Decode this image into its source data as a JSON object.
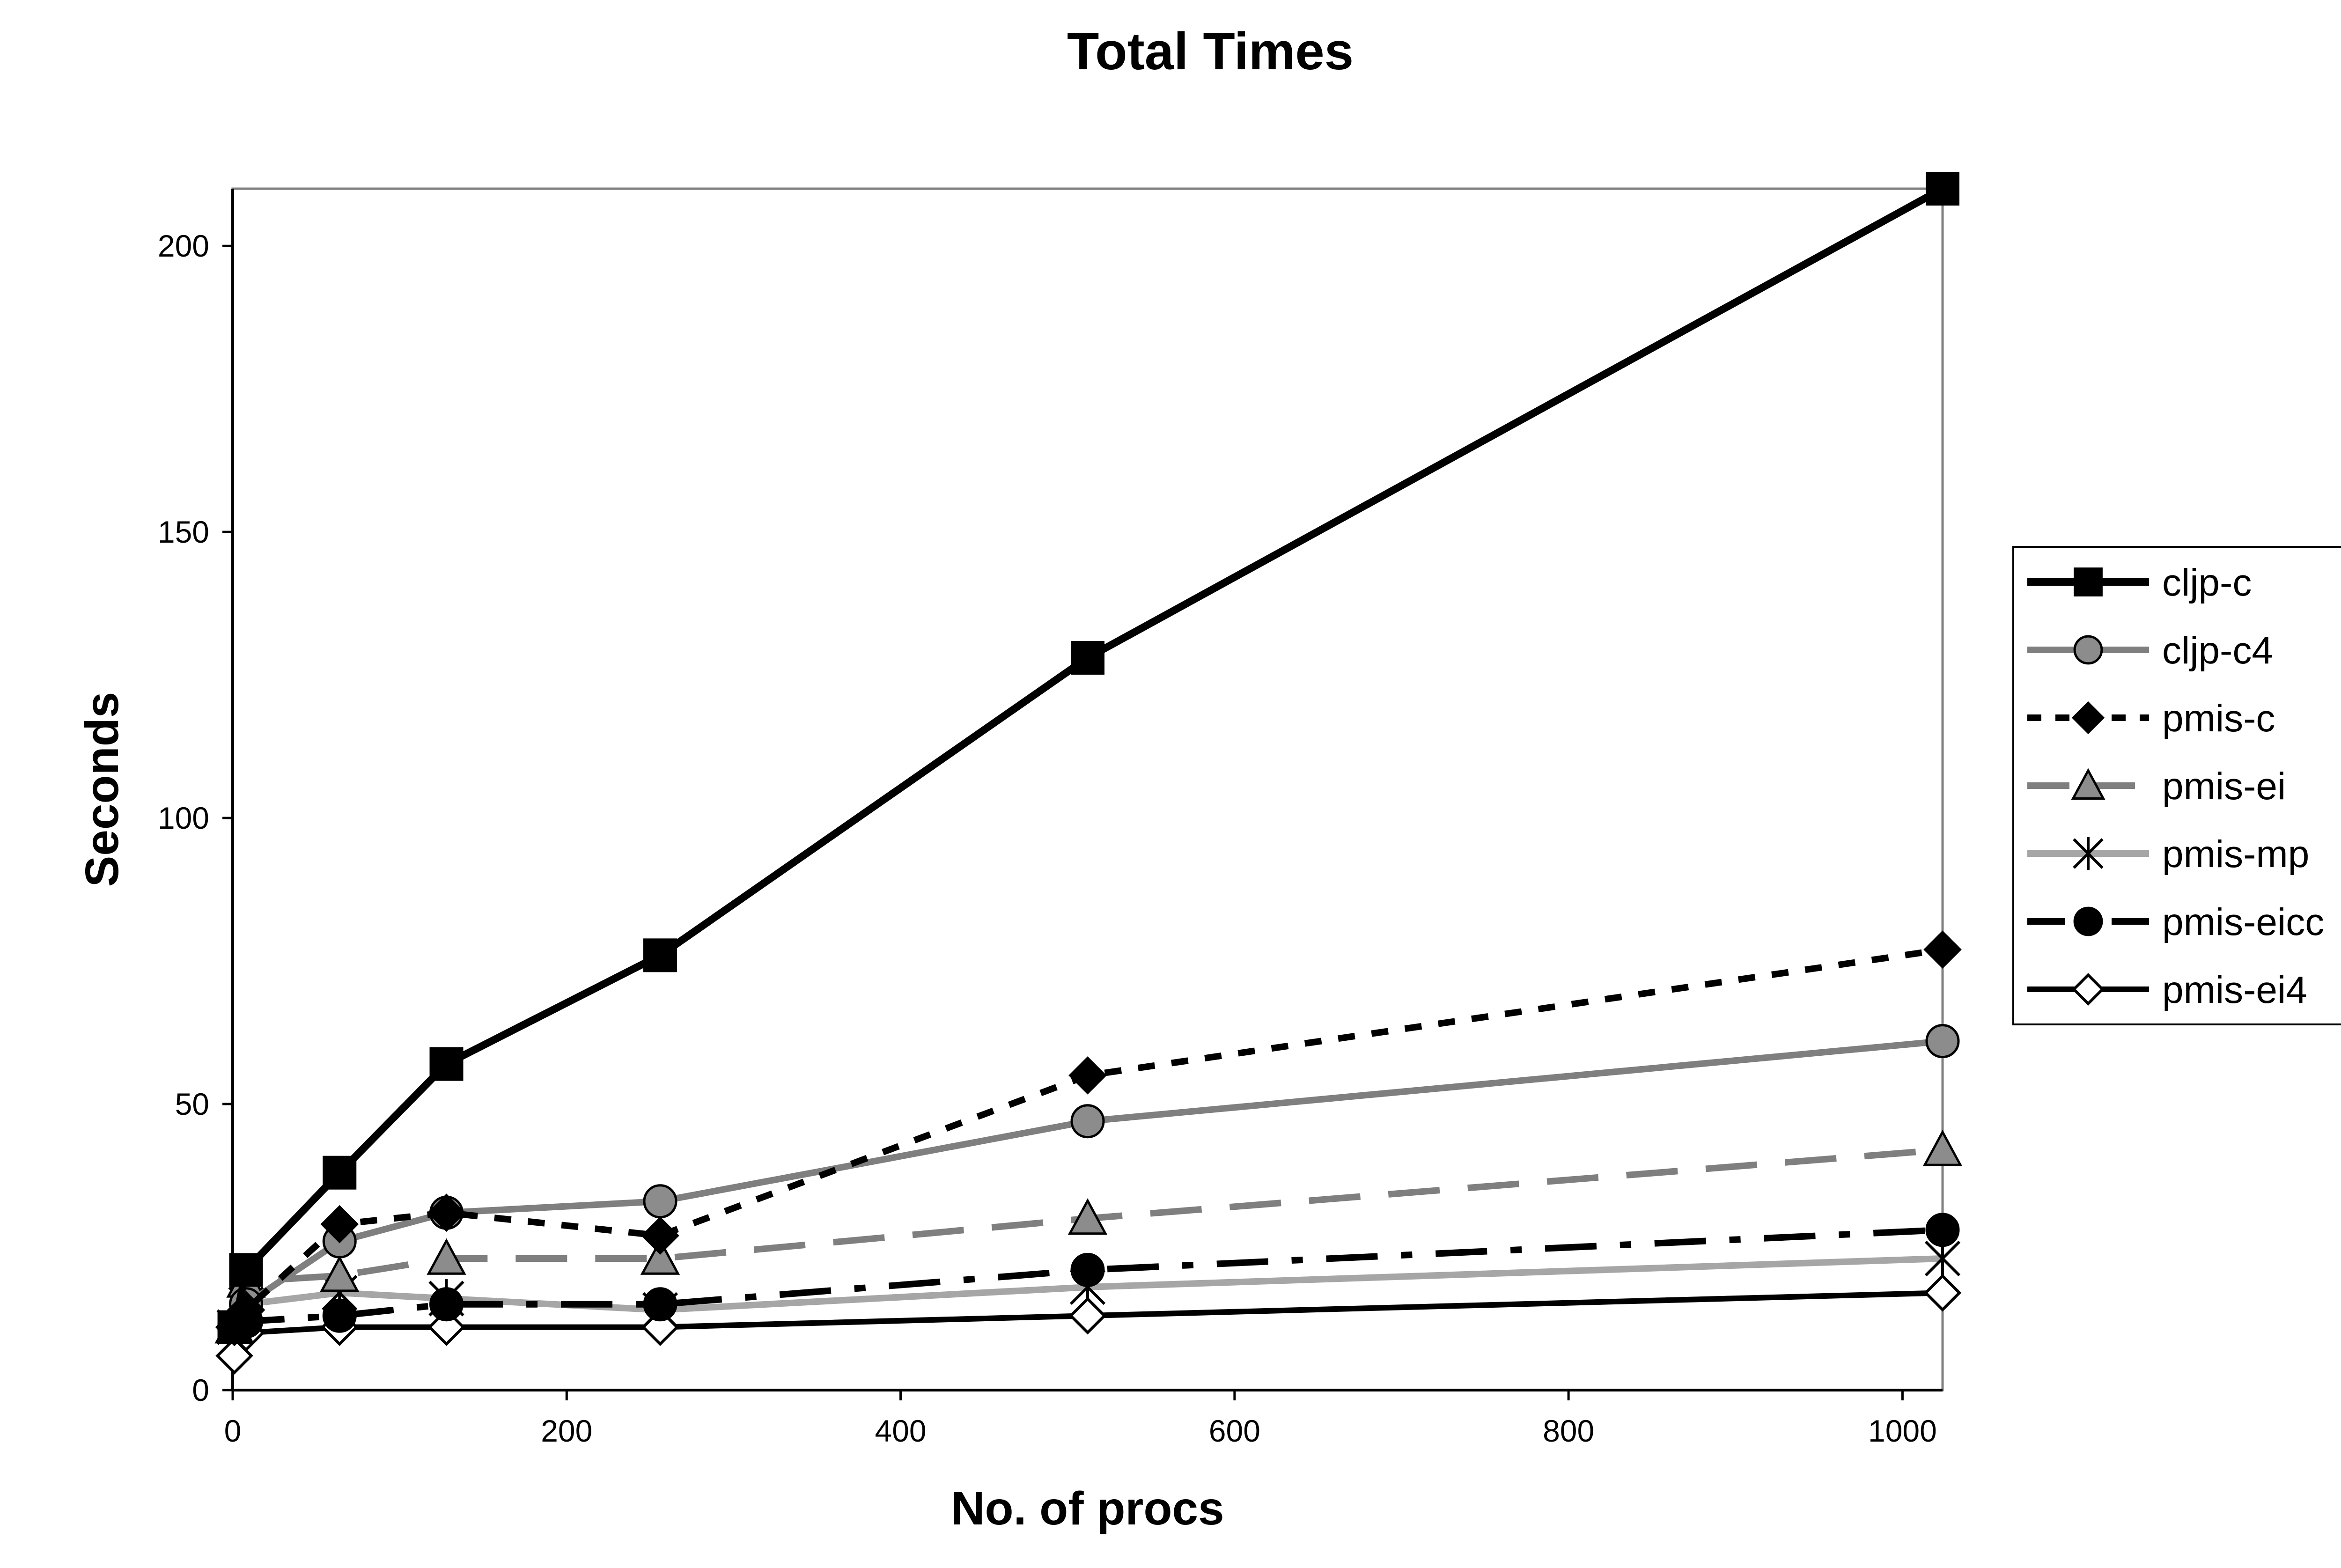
{
  "chart_data": {
    "type": "line",
    "title": "Total Times",
    "xlabel": "No. of procs",
    "ylabel": "Seconds",
    "xlim": [
      0,
      1024
    ],
    "ylim": [
      0,
      210
    ],
    "x_ticks": [
      0,
      200,
      400,
      600,
      800,
      1000
    ],
    "y_ticks": [
      0,
      50,
      100,
      150,
      200
    ],
    "x_tick_labels": [
      "0",
      "200",
      "400",
      "600",
      "800",
      "1000"
    ],
    "y_tick_labels": [
      "0",
      "50",
      "100",
      "150",
      "200"
    ],
    "grid": false,
    "legend_position": "right",
    "x": [
      1,
      8,
      64,
      128,
      256,
      512,
      1024
    ],
    "series": [
      {
        "name": "cljp-c",
        "values": [
          11,
          21,
          38,
          57,
          76,
          128,
          210
        ],
        "color": "#000000",
        "dash": "solid",
        "marker": "square",
        "width": 16
      },
      {
        "name": "cljp-c4",
        "values": [
          11,
          15,
          26,
          31,
          33,
          47,
          61
        ],
        "color": "#7f7f7f",
        "dash": "solid",
        "marker": "circle",
        "width": 14
      },
      {
        "name": "pmis-c",
        "values": [
          11,
          14,
          29,
          31,
          27,
          55,
          77
        ],
        "color": "#000000",
        "dash": "dotted",
        "marker": "diamond",
        "width": 14
      },
      {
        "name": "pmis-ei",
        "values": [
          11,
          19,
          20,
          23,
          23,
          30,
          42
        ],
        "color": "#7f7f7f",
        "dash": "dashed",
        "marker": "triangle",
        "width": 14
      },
      {
        "name": "pmis-mp",
        "values": [
          11,
          15,
          17,
          16,
          14,
          18,
          23
        ],
        "color": "#a6a6a6",
        "dash": "solid",
        "marker": "star",
        "width": 14
      },
      {
        "name": "pmis-eicc",
        "values": [
          11,
          12,
          13,
          15,
          15,
          21,
          28
        ],
        "color": "#000000",
        "dash": "dashdot",
        "marker": "circle",
        "width": 14
      },
      {
        "name": "pmis-ei4",
        "values": [
          6,
          10,
          11,
          11,
          11,
          13,
          17
        ],
        "color": "#000000",
        "dash": "solid",
        "marker": "diamond-open",
        "width": 12
      }
    ]
  }
}
